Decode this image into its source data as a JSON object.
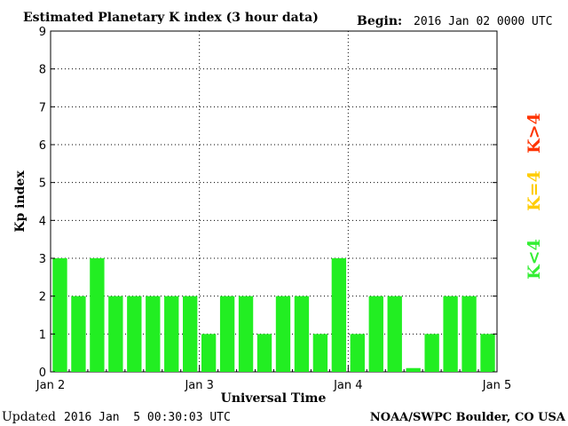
{
  "header": {
    "title": "Estimated Planetary K index (3 hour data)",
    "begin_label": "Begin:",
    "begin_value": "2016 Jan 02 0000 UTC"
  },
  "footer": {
    "updated_label": "Updated",
    "updated_value": "2016 Jan  5 00:30:03 UTC",
    "source": "NOAA/SWPC Boulder, CO USA"
  },
  "legend": {
    "items": [
      {
        "label": "K>4",
        "color": "#ff3300"
      },
      {
        "label": "K=4",
        "color": "#ffcc00"
      },
      {
        "label": "K<4",
        "color": "#33ee33"
      }
    ]
  },
  "chart_data": {
    "type": "bar",
    "xlabel": "Universal Time",
    "ylabel": "Kp index",
    "ylim": [
      0,
      9
    ],
    "yticks": [
      0,
      1,
      2,
      3,
      4,
      5,
      6,
      7,
      8,
      9
    ],
    "xtick_labels": [
      "Jan 2",
      "Jan 3",
      "Jan 4",
      "Jan 5"
    ],
    "grid": true,
    "bar_color": "#22ee22",
    "values": [
      3,
      2,
      3,
      2,
      2,
      2,
      2,
      2,
      1,
      2,
      2,
      1,
      2,
      2,
      1,
      3,
      1,
      2,
      2,
      0.1,
      1,
      2,
      2,
      1
    ]
  }
}
